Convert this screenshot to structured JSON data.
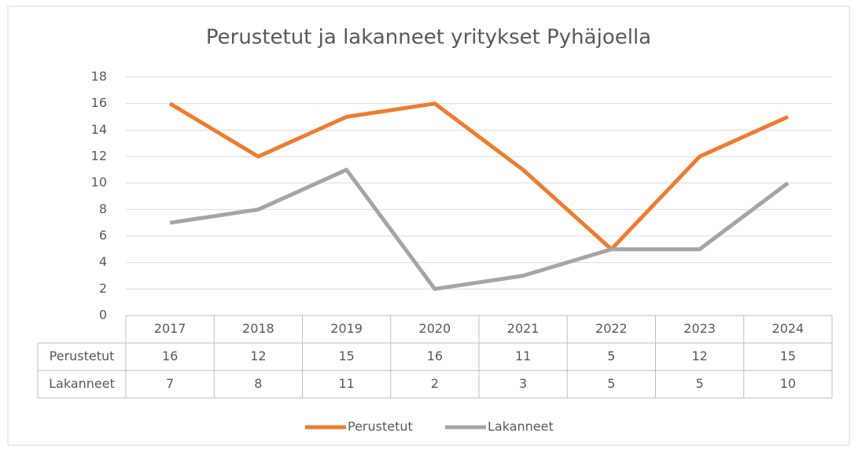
{
  "chart_data": {
    "type": "line",
    "title": "Perustetut ja lakanneet yritykset Pyhäjoella",
    "categories": [
      "2017",
      "2018",
      "2019",
      "2020",
      "2021",
      "2022",
      "2023",
      "2024"
    ],
    "series": [
      {
        "name": "Perustetut",
        "color": "#ED7D31",
        "values": [
          16,
          12,
          15,
          16,
          11,
          5,
          12,
          15
        ]
      },
      {
        "name": "Lakanneet",
        "color": "#A5A5A5",
        "values": [
          7,
          8,
          11,
          2,
          3,
          5,
          5,
          10
        ]
      }
    ],
    "ylim": [
      0,
      18
    ],
    "yticks": [
      0,
      2,
      4,
      6,
      8,
      10,
      12,
      14,
      16,
      18
    ],
    "grid": true,
    "legend": "bottom"
  }
}
